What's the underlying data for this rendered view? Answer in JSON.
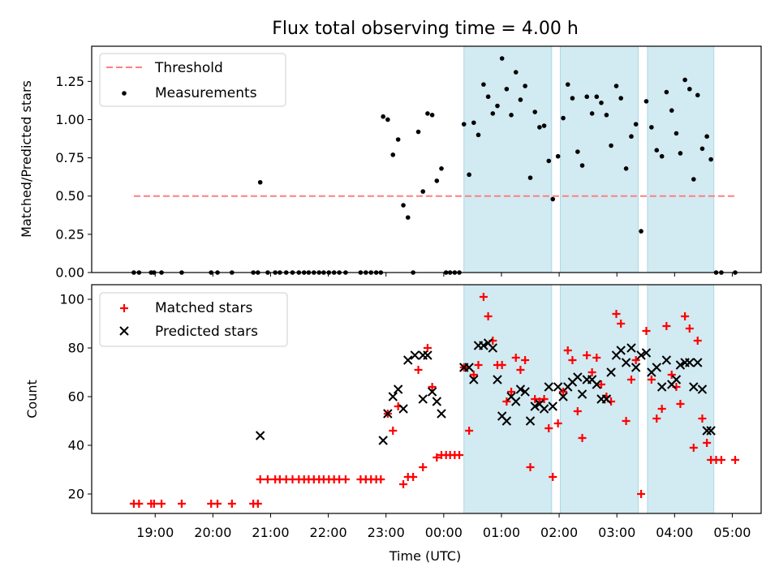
{
  "chart_data": [
    {
      "type": "scatter",
      "title": "Flux total observing time = 4.00 h",
      "xlabel": "",
      "ylabel": "Matched/Predicted stars",
      "xlim_hours": [
        17.9,
        29.5
      ],
      "ylim": [
        0,
        1.48
      ],
      "yticks": [
        0,
        0.25,
        0.5,
        0.75,
        1.0,
        1.25
      ],
      "ytick_labels": [
        "0.00",
        "0.25",
        "0.50",
        "0.75",
        "1.00",
        "1.25"
      ],
      "legend_position": "top-left",
      "legend": [
        "Threshold",
        "Measurements"
      ],
      "threshold": {
        "value": 0.5,
        "x_start": 18.63,
        "x_end": 29.05,
        "color": "#ff7f7f"
      },
      "shaded_intervals": [
        [
          24.35,
          25.87
        ],
        [
          26.02,
          27.37
        ],
        [
          27.53,
          28.68
        ]
      ],
      "shade_color": "#add8e6",
      "measurements": [
        [
          18.63,
          0.0
        ],
        [
          18.72,
          0.0
        ],
        [
          18.93,
          0.0
        ],
        [
          18.98,
          0.0
        ],
        [
          19.11,
          0.0
        ],
        [
          19.46,
          0.0
        ],
        [
          19.97,
          0.0
        ],
        [
          20.08,
          0.0
        ],
        [
          20.33,
          0.0
        ],
        [
          20.7,
          0.0
        ],
        [
          20.78,
          0.0
        ],
        [
          20.82,
          0.59
        ],
        [
          20.95,
          0.0
        ],
        [
          21.08,
          0.0
        ],
        [
          21.16,
          0.0
        ],
        [
          21.27,
          0.0
        ],
        [
          21.38,
          0.0
        ],
        [
          21.49,
          0.0
        ],
        [
          21.58,
          0.0
        ],
        [
          21.66,
          0.0
        ],
        [
          21.75,
          0.0
        ],
        [
          21.84,
          0.0
        ],
        [
          21.92,
          0.0
        ],
        [
          22.01,
          0.0
        ],
        [
          22.1,
          0.0
        ],
        [
          22.19,
          0.0
        ],
        [
          22.3,
          0.0
        ],
        [
          22.56,
          0.0
        ],
        [
          22.65,
          0.0
        ],
        [
          22.74,
          0.0
        ],
        [
          22.83,
          0.0
        ],
        [
          22.91,
          0.0
        ],
        [
          22.95,
          1.02
        ],
        [
          23.03,
          1.0
        ],
        [
          23.12,
          0.77
        ],
        [
          23.21,
          0.87
        ],
        [
          23.3,
          0.44
        ],
        [
          23.38,
          0.36
        ],
        [
          23.47,
          0.0
        ],
        [
          23.56,
          0.92
        ],
        [
          23.64,
          0.53
        ],
        [
          23.72,
          1.04
        ],
        [
          23.8,
          1.03
        ],
        [
          23.88,
          0.6
        ],
        [
          23.96,
          0.68
        ],
        [
          24.04,
          0.0
        ],
        [
          24.11,
          0.0
        ],
        [
          24.19,
          0.0
        ],
        [
          24.27,
          0.0
        ],
        [
          24.35,
          0.97
        ],
        [
          24.44,
          0.64
        ],
        [
          24.52,
          0.98
        ],
        [
          24.6,
          0.9
        ],
        [
          24.69,
          1.23
        ],
        [
          24.77,
          1.15
        ],
        [
          24.85,
          1.04
        ],
        [
          24.93,
          1.09
        ],
        [
          25.01,
          1.4
        ],
        [
          25.09,
          1.2
        ],
        [
          25.17,
          1.03
        ],
        [
          25.25,
          1.31
        ],
        [
          25.33,
          1.13
        ],
        [
          25.41,
          1.22
        ],
        [
          25.5,
          0.62
        ],
        [
          25.58,
          1.05
        ],
        [
          25.66,
          0.95
        ],
        [
          25.74,
          0.96
        ],
        [
          25.82,
          0.73
        ],
        [
          25.89,
          0.48
        ],
        [
          25.98,
          0.76
        ],
        [
          26.07,
          1.01
        ],
        [
          26.15,
          1.23
        ],
        [
          26.23,
          1.14
        ],
        [
          26.32,
          0.79
        ],
        [
          26.4,
          0.7
        ],
        [
          26.48,
          1.15
        ],
        [
          26.57,
          1.04
        ],
        [
          26.65,
          1.15
        ],
        [
          26.73,
          1.11
        ],
        [
          26.82,
          1.03
        ],
        [
          26.9,
          0.83
        ],
        [
          26.99,
          1.22
        ],
        [
          27.07,
          1.14
        ],
        [
          27.16,
          0.68
        ],
        [
          27.25,
          0.89
        ],
        [
          27.33,
          0.97
        ],
        [
          27.42,
          0.27
        ],
        [
          27.51,
          1.12
        ],
        [
          27.6,
          0.95
        ],
        [
          27.69,
          0.8
        ],
        [
          27.78,
          0.76
        ],
        [
          27.86,
          1.18
        ],
        [
          27.95,
          1.06
        ],
        [
          28.03,
          0.91
        ],
        [
          28.1,
          0.78
        ],
        [
          28.18,
          1.26
        ],
        [
          28.26,
          1.2
        ],
        [
          28.33,
          0.61
        ],
        [
          28.4,
          1.16
        ],
        [
          28.48,
          0.81
        ],
        [
          28.56,
          0.89
        ],
        [
          28.63,
          0.74
        ],
        [
          28.72,
          0.0
        ],
        [
          28.81,
          0.0
        ],
        [
          29.05,
          0.0
        ]
      ]
    },
    {
      "type": "scatter",
      "title": "",
      "xlabel": "Time (UTC)",
      "ylabel": "Count",
      "xlim_hours": [
        17.9,
        29.5
      ],
      "ylim": [
        12,
        106
      ],
      "yticks": [
        20,
        40,
        60,
        80,
        100
      ],
      "ytick_labels": [
        "20",
        "40",
        "60",
        "80",
        "100"
      ],
      "xticks_hours": [
        19,
        20,
        21,
        22,
        23,
        24,
        25,
        26,
        27,
        28,
        29
      ],
      "xtick_labels": [
        "19:00",
        "20:00",
        "21:00",
        "22:00",
        "23:00",
        "00:00",
        "01:00",
        "02:00",
        "03:00",
        "04:00",
        "05:00"
      ],
      "legend_position": "top-left",
      "legend": [
        "Matched stars",
        "Predicted stars"
      ],
      "series": [
        {
          "name": "Matched stars",
          "marker": "+",
          "color": "#ff0000",
          "points": [
            [
              18.63,
              16
            ],
            [
              18.72,
              16
            ],
            [
              18.93,
              16
            ],
            [
              18.98,
              16
            ],
            [
              19.11,
              16
            ],
            [
              19.46,
              16
            ],
            [
              19.97,
              16
            ],
            [
              20.08,
              16
            ],
            [
              20.33,
              16
            ],
            [
              20.7,
              16
            ],
            [
              20.78,
              16
            ],
            [
              20.82,
              26
            ],
            [
              20.95,
              26
            ],
            [
              21.08,
              26
            ],
            [
              21.16,
              26
            ],
            [
              21.27,
              26
            ],
            [
              21.38,
              26
            ],
            [
              21.49,
              26
            ],
            [
              21.58,
              26
            ],
            [
              21.66,
              26
            ],
            [
              21.75,
              26
            ],
            [
              21.84,
              26
            ],
            [
              21.92,
              26
            ],
            [
              22.01,
              26
            ],
            [
              22.1,
              26
            ],
            [
              22.19,
              26
            ],
            [
              22.3,
              26
            ],
            [
              22.56,
              26
            ],
            [
              22.65,
              26
            ],
            [
              22.74,
              26
            ],
            [
              22.83,
              26
            ],
            [
              22.91,
              26
            ],
            [
              23.03,
              53
            ],
            [
              23.12,
              46
            ],
            [
              23.21,
              56
            ],
            [
              23.3,
              24
            ],
            [
              23.38,
              27
            ],
            [
              23.47,
              27
            ],
            [
              23.56,
              71
            ],
            [
              23.64,
              31
            ],
            [
              23.72,
              80
            ],
            [
              23.8,
              64
            ],
            [
              23.88,
              35
            ],
            [
              23.96,
              36
            ],
            [
              24.04,
              36
            ],
            [
              24.11,
              36
            ],
            [
              24.19,
              36
            ],
            [
              24.27,
              36
            ],
            [
              24.35,
              72
            ],
            [
              24.44,
              46
            ],
            [
              24.52,
              69
            ],
            [
              24.6,
              73
            ],
            [
              24.69,
              101
            ],
            [
              24.77,
              93
            ],
            [
              24.85,
              83
            ],
            [
              24.93,
              73
            ],
            [
              25.01,
              73
            ],
            [
              25.09,
              58
            ],
            [
              25.17,
              62
            ],
            [
              25.25,
              76
            ],
            [
              25.33,
              71
            ],
            [
              25.41,
              75
            ],
            [
              25.5,
              31
            ],
            [
              25.58,
              59
            ],
            [
              25.66,
              58
            ],
            [
              25.74,
              59
            ],
            [
              25.82,
              47
            ],
            [
              25.89,
              27
            ],
            [
              25.98,
              49
            ],
            [
              26.07,
              62
            ],
            [
              26.15,
              79
            ],
            [
              26.23,
              75
            ],
            [
              26.32,
              54
            ],
            [
              26.4,
              43
            ],
            [
              26.48,
              77
            ],
            [
              26.57,
              70
            ],
            [
              26.65,
              76
            ],
            [
              26.73,
              65
            ],
            [
              26.82,
              60
            ],
            [
              26.9,
              58
            ],
            [
              26.99,
              94
            ],
            [
              27.07,
              90
            ],
            [
              27.16,
              50
            ],
            [
              27.25,
              67
            ],
            [
              27.33,
              75
            ],
            [
              27.42,
              20
            ],
            [
              27.51,
              87
            ],
            [
              27.6,
              67
            ],
            [
              27.69,
              51
            ],
            [
              27.78,
              55
            ],
            [
              27.86,
              89
            ],
            [
              27.95,
              69
            ],
            [
              28.03,
              64
            ],
            [
              28.1,
              57
            ],
            [
              28.18,
              93
            ],
            [
              28.26,
              88
            ],
            [
              28.33,
              39
            ],
            [
              28.4,
              83
            ],
            [
              28.48,
              51
            ],
            [
              28.56,
              41
            ],
            [
              28.63,
              34
            ],
            [
              28.72,
              34
            ],
            [
              28.81,
              34
            ],
            [
              29.05,
              34
            ]
          ]
        },
        {
          "name": "Predicted stars",
          "marker": "x",
          "color": "#000000",
          "points": [
            [
              20.82,
              44
            ],
            [
              22.95,
              42
            ],
            [
              23.03,
              53
            ],
            [
              23.12,
              60
            ],
            [
              23.21,
              63
            ],
            [
              23.3,
              55
            ],
            [
              23.38,
              75
            ],
            [
              23.5,
              77
            ],
            [
              23.64,
              59
            ],
            [
              23.64,
              77
            ],
            [
              23.72,
              77
            ],
            [
              23.8,
              62
            ],
            [
              23.88,
              58
            ],
            [
              23.96,
              53
            ],
            [
              24.35,
              72
            ],
            [
              24.44,
              72
            ],
            [
              24.52,
              67
            ],
            [
              24.6,
              81
            ],
            [
              24.69,
              81
            ],
            [
              24.77,
              82
            ],
            [
              24.85,
              80
            ],
            [
              24.93,
              67
            ],
            [
              25.01,
              52
            ],
            [
              25.09,
              50
            ],
            [
              25.17,
              60
            ],
            [
              25.25,
              58
            ],
            [
              25.33,
              63
            ],
            [
              25.41,
              62
            ],
            [
              25.5,
              50
            ],
            [
              25.58,
              56
            ],
            [
              25.66,
              57
            ],
            [
              25.74,
              55
            ],
            [
              25.82,
              64
            ],
            [
              25.89,
              56
            ],
            [
              25.98,
              64
            ],
            [
              26.07,
              60
            ],
            [
              26.15,
              64
            ],
            [
              26.23,
              66
            ],
            [
              26.32,
              68
            ],
            [
              26.4,
              61
            ],
            [
              26.48,
              67
            ],
            [
              26.57,
              67
            ],
            [
              26.65,
              65
            ],
            [
              26.73,
              59
            ],
            [
              26.82,
              59
            ],
            [
              26.9,
              70
            ],
            [
              26.99,
              77
            ],
            [
              27.07,
              79
            ],
            [
              27.16,
              74
            ],
            [
              27.25,
              80
            ],
            [
              27.33,
              72
            ],
            [
              27.42,
              77
            ],
            [
              27.51,
              78
            ],
            [
              27.6,
              70
            ],
            [
              27.69,
              72
            ],
            [
              27.78,
              64
            ],
            [
              27.86,
              75
            ],
            [
              27.95,
              65
            ],
            [
              28.03,
              67
            ],
            [
              28.1,
              73
            ],
            [
              28.18,
              74
            ],
            [
              28.26,
              74
            ],
            [
              28.33,
              64
            ],
            [
              28.4,
              74
            ],
            [
              28.48,
              63
            ],
            [
              28.56,
              46
            ],
            [
              28.63,
              46
            ]
          ]
        }
      ]
    }
  ]
}
